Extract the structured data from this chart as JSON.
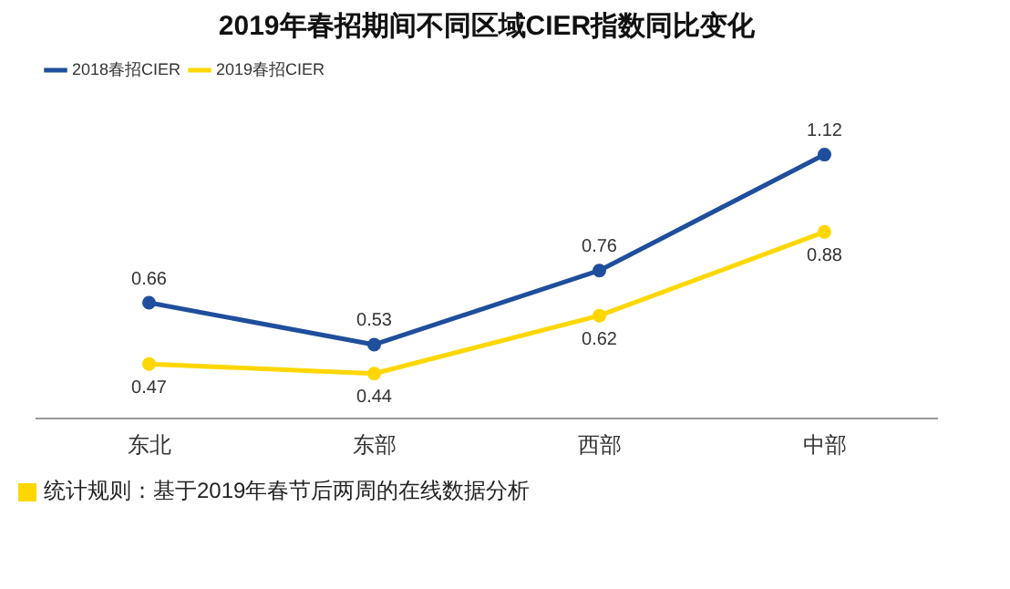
{
  "chart_data": {
    "type": "line",
    "title": "2019年春招期间不同区域CIER指数同比变化",
    "categories": [
      "东北",
      "东部",
      "西部",
      "中部"
    ],
    "series": [
      {
        "name": "2018春招CIER",
        "color": "#1f4e9c",
        "values": [
          0.66,
          0.53,
          0.76,
          1.12
        ]
      },
      {
        "name": "2019春招CIER",
        "color": "#ffd700",
        "values": [
          0.47,
          0.44,
          0.62,
          0.88
        ]
      }
    ],
    "data_labels": true,
    "legend": "top left",
    "marker": "circle",
    "line_style": "solid",
    "grid": false,
    "tick_labels": "x",
    "annotations": [
      "统计规则：基于2019年春节后两周的在线数据分析"
    ]
  }
}
